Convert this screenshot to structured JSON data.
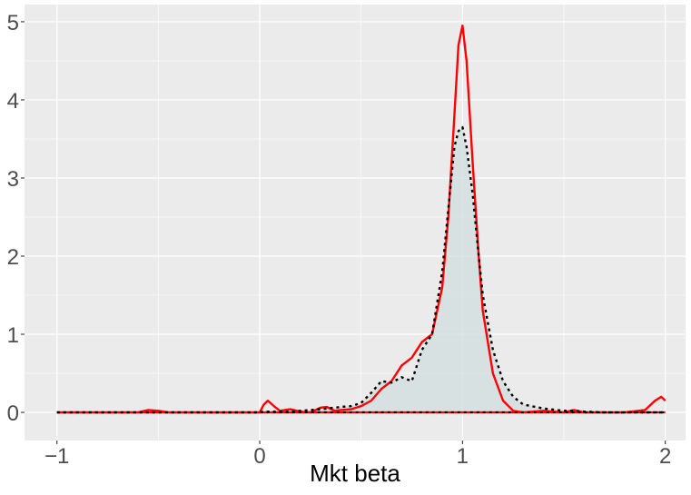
{
  "chart_data": {
    "type": "density",
    "x_label": "Mkt beta",
    "x": [
      -1,
      -0.6,
      -0.55,
      -0.5,
      -0.45,
      0,
      0.02,
      0.04,
      0.07,
      0.1,
      0.15,
      0.2,
      0.25,
      0.3,
      0.33,
      0.37,
      0.4,
      0.45,
      0.5,
      0.55,
      0.6,
      0.65,
      0.7,
      0.75,
      0.8,
      0.85,
      0.9,
      0.93,
      0.96,
      0.98,
      1.0,
      1.02,
      1.05,
      1.08,
      1.1,
      1.15,
      1.2,
      1.25,
      1.3,
      1.4,
      1.5,
      1.55,
      1.6,
      1.7,
      1.8,
      1.9,
      1.95,
      1.98,
      2.0
    ],
    "series": [
      {
        "color": "#ff0000",
        "linestyle": "solid",
        "values": [
          0,
          0,
          0.03,
          0.02,
          0,
          0,
          0.1,
          0.15,
          0.08,
          0.02,
          0.04,
          0.01,
          0,
          0.06,
          0.07,
          0.02,
          0.03,
          0.04,
          0.08,
          0.15,
          0.3,
          0.4,
          0.6,
          0.7,
          0.9,
          1.0,
          1.6,
          2.5,
          3.8,
          4.7,
          4.95,
          4.5,
          3.2,
          2.0,
          1.3,
          0.5,
          0.15,
          0.02,
          0,
          0.02,
          0,
          0.03,
          0,
          0,
          0,
          0.03,
          0.15,
          0.2,
          0.15
        ]
      },
      {
        "color": "#000000",
        "linestyle": "dotted",
        "fill": "#d3dfdf",
        "values": [
          0,
          0,
          0,
          0,
          0,
          0,
          0.01,
          0.01,
          0.01,
          0.01,
          0.01,
          0.02,
          0.03,
          0.04,
          0.05,
          0.06,
          0.07,
          0.08,
          0.12,
          0.25,
          0.4,
          0.38,
          0.45,
          0.4,
          0.8,
          1.0,
          1.8,
          2.6,
          3.4,
          3.6,
          3.65,
          3.4,
          2.8,
          2.0,
          1.5,
          0.8,
          0.4,
          0.2,
          0.1,
          0.05,
          0.02,
          0.02,
          0.01,
          0,
          0,
          0,
          0,
          0,
          0
        ]
      }
    ],
    "xlim": [
      -1.16,
      2.1
    ],
    "ylim": [
      -0.36,
      5.22
    ],
    "xticks": [
      {
        "value": -1,
        "label": "−1"
      },
      0,
      1,
      2
    ],
    "yticks": [
      0,
      1,
      2,
      3,
      4,
      5
    ],
    "grid": true,
    "panel_color": "#ebebeb"
  }
}
